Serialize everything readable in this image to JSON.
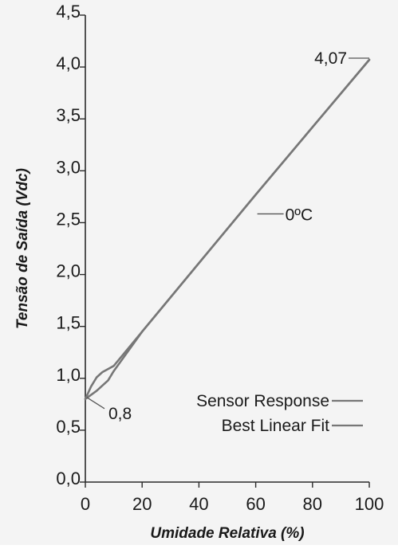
{
  "chart_data": {
    "type": "line",
    "title": "",
    "xlabel": "Umidade Relativa (%)",
    "ylabel": "Tensão de Saída (Vdc)",
    "xlim": [
      0,
      100
    ],
    "ylim": [
      0,
      4.5
    ],
    "x_ticks": [
      0,
      20,
      40,
      60,
      80,
      100
    ],
    "x_tick_labels": [
      "0",
      "20",
      "40",
      "60",
      "80",
      "100"
    ],
    "y_ticks": [
      0.0,
      0.5,
      1.0,
      1.5,
      2.0,
      2.5,
      3.0,
      3.5,
      4.0,
      4.5
    ],
    "y_tick_labels": [
      "0,0",
      "0,5",
      "1,0",
      "1,5",
      "2,0",
      "2,5",
      "3,0",
      "3,5",
      "4,0",
      "4,5"
    ],
    "grid": false,
    "legend_position": "bottom-right",
    "series": [
      {
        "name": "Sensor Response",
        "color": "#777777",
        "x": [
          0,
          2,
          4,
          6,
          8,
          10,
          20,
          40,
          60,
          80,
          100
        ],
        "y": [
          0.8,
          0.92,
          1.01,
          1.06,
          1.09,
          1.12,
          1.45,
          2.11,
          2.77,
          3.42,
          4.07
        ]
      },
      {
        "name": "Best Linear Fit",
        "color": "#777777",
        "x": [
          0,
          4,
          8,
          10,
          20,
          40,
          60,
          80,
          100
        ],
        "y": [
          0.8,
          0.88,
          0.98,
          1.07,
          1.45,
          2.11,
          2.77,
          3.42,
          4.07
        ]
      }
    ],
    "annotations": [
      {
        "text": "4,07",
        "x": 100,
        "y": 4.07
      },
      {
        "text": "0ºC",
        "x": 60,
        "y": 2.6
      },
      {
        "text": "0,8",
        "x": 0,
        "y": 0.8
      }
    ]
  }
}
